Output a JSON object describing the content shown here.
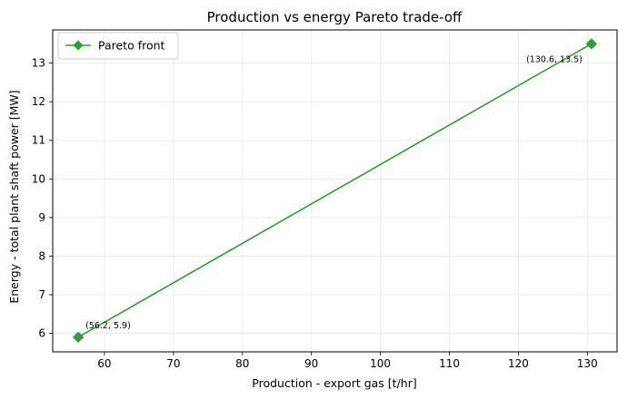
{
  "chart_data": {
    "type": "line",
    "title": "Production vs energy Pareto trade-off",
    "xlabel": "Production - export gas [t/hr]",
    "ylabel": "Energy - total plant shaft power [MW]",
    "xlim": [
      52.5,
      134.3
    ],
    "ylim": [
      5.52,
      13.86
    ],
    "xticks": [
      60,
      70,
      80,
      90,
      100,
      110,
      120,
      130
    ],
    "yticks": [
      6,
      7,
      8,
      9,
      10,
      11,
      12,
      13
    ],
    "grid": true,
    "legend_position": "upper-left",
    "series": [
      {
        "name": "Pareto front",
        "color": "#2ca02c",
        "marker": "diamond",
        "x": [
          56.2,
          130.6
        ],
        "y": [
          5.9,
          13.5
        ]
      }
    ],
    "annotations": [
      {
        "text": "(56.2, 5.9)",
        "x": 56.2,
        "y": 5.9
      },
      {
        "text": "(130.6, 13.5)",
        "x": 130.6,
        "y": 13.5
      }
    ]
  }
}
